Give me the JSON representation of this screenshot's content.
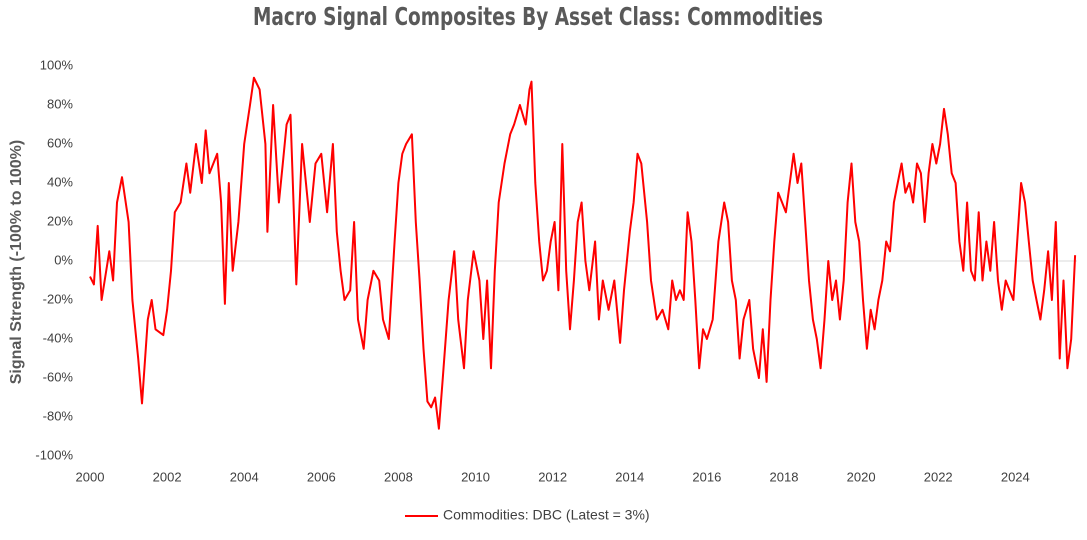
{
  "chart_data": {
    "type": "line",
    "title": "Macro Signal Composites By Asset Class: Commodities",
    "y_label": "Signal Strength (-100% to 100%)",
    "x": [
      2000.0,
      2000.1,
      2000.2,
      2000.3,
      2000.5,
      2000.6,
      2000.7,
      2000.83,
      2001.0,
      2001.1,
      2001.25,
      2001.35,
      2001.5,
      2001.6,
      2001.7,
      2001.9,
      2002.0,
      2002.1,
      2002.2,
      2002.35,
      2002.5,
      2002.6,
      2002.75,
      2002.9,
      2003.0,
      2003.1,
      2003.3,
      2003.4,
      2003.5,
      2003.6,
      2003.7,
      2003.85,
      2004.0,
      2004.15,
      2004.25,
      2004.4,
      2004.55,
      2004.6,
      2004.75,
      2004.9,
      2005.0,
      2005.1,
      2005.2,
      2005.35,
      2005.5,
      2005.7,
      2005.85,
      2006.0,
      2006.15,
      2006.3,
      2006.4,
      2006.5,
      2006.6,
      2006.75,
      2006.85,
      2006.95,
      2007.1,
      2007.2,
      2007.35,
      2007.5,
      2007.6,
      2007.75,
      2007.9,
      2008.0,
      2008.1,
      2008.2,
      2008.35,
      2008.45,
      2008.55,
      2008.65,
      2008.75,
      2008.85,
      2008.95,
      2009.05,
      2009.15,
      2009.3,
      2009.45,
      2009.55,
      2009.7,
      2009.8,
      2009.95,
      2010.1,
      2010.2,
      2010.3,
      2010.4,
      2010.5,
      2010.6,
      2010.75,
      2010.9,
      2011.0,
      2011.15,
      2011.3,
      2011.4,
      2011.45,
      2011.55,
      2011.65,
      2011.75,
      2011.85,
      2011.95,
      2012.05,
      2012.15,
      2012.25,
      2012.35,
      2012.45,
      2012.55,
      2012.65,
      2012.75,
      2012.85,
      2012.95,
      2013.1,
      2013.2,
      2013.3,
      2013.45,
      2013.6,
      2013.75,
      2013.85,
      2014.0,
      2014.1,
      2014.2,
      2014.3,
      2014.45,
      2014.55,
      2014.7,
      2014.85,
      2015.0,
      2015.1,
      2015.2,
      2015.3,
      2015.4,
      2015.5,
      2015.6,
      2015.7,
      2015.8,
      2015.9,
      2016.0,
      2016.15,
      2016.3,
      2016.45,
      2016.55,
      2016.65,
      2016.75,
      2016.85,
      2016.95,
      2017.1,
      2017.2,
      2017.35,
      2017.45,
      2017.55,
      2017.65,
      2017.75,
      2017.85,
      2017.95,
      2018.05,
      2018.15,
      2018.25,
      2018.35,
      2018.45,
      2018.55,
      2018.65,
      2018.75,
      2018.85,
      2018.95,
      2019.05,
      2019.15,
      2019.25,
      2019.35,
      2019.45,
      2019.55,
      2019.65,
      2019.75,
      2019.85,
      2019.95,
      2020.05,
      2020.15,
      2020.25,
      2020.35,
      2020.45,
      2020.55,
      2020.65,
      2020.75,
      2020.85,
      2020.95,
      2021.05,
      2021.15,
      2021.25,
      2021.35,
      2021.45,
      2021.55,
      2021.65,
      2021.75,
      2021.85,
      2021.95,
      2022.05,
      2022.15,
      2022.25,
      2022.35,
      2022.45,
      2022.55,
      2022.65,
      2022.75,
      2022.85,
      2022.95,
      2023.05,
      2023.15,
      2023.25,
      2023.35,
      2023.45,
      2023.55,
      2023.65,
      2023.75,
      2023.85,
      2023.95,
      2024.05,
      2024.15,
      2024.25,
      2024.35,
      2024.45,
      2024.55,
      2024.65,
      2024.75,
      2024.85,
      2024.95,
      2025.05,
      2025.15,
      2025.25,
      2025.35,
      2025.45,
      2025.55
    ],
    "series": [
      {
        "name": "Commodities: DBC (Latest = 3%)",
        "color": "#ff0000",
        "values": [
          -8,
          -12,
          18,
          -20,
          5,
          -10,
          30,
          43,
          20,
          -20,
          -50,
          -73,
          -30,
          -20,
          -35,
          -38,
          -25,
          -5,
          25,
          30,
          50,
          35,
          60,
          40,
          67,
          45,
          55,
          30,
          -22,
          40,
          -5,
          20,
          60,
          80,
          94,
          88,
          60,
          15,
          80,
          30,
          50,
          70,
          75,
          -12,
          60,
          20,
          50,
          55,
          25,
          60,
          15,
          -5,
          -20,
          -15,
          20,
          -30,
          -45,
          -20,
          -5,
          -10,
          -30,
          -40,
          10,
          40,
          55,
          60,
          65,
          20,
          -10,
          -45,
          -72,
          -75,
          -70,
          -86,
          -60,
          -20,
          5,
          -30,
          -55,
          -20,
          5,
          -10,
          -40,
          -10,
          -55,
          -5,
          30,
          50,
          65,
          70,
          80,
          70,
          88,
          92,
          40,
          10,
          -10,
          -5,
          10,
          20,
          -15,
          60,
          -5,
          -35,
          -10,
          20,
          30,
          0,
          -15,
          10,
          -30,
          -10,
          -25,
          -10,
          -42,
          -15,
          15,
          30,
          55,
          50,
          20,
          -10,
          -30,
          -25,
          -35,
          -10,
          -20,
          -15,
          -20,
          25,
          10,
          -20,
          -55,
          -35,
          -40,
          -30,
          10,
          30,
          20,
          -10,
          -20,
          -50,
          -30,
          -20,
          -45,
          -60,
          -35,
          -62,
          -20,
          10,
          35,
          30,
          25,
          40,
          55,
          40,
          50,
          20,
          -10,
          -30,
          -40,
          -55,
          -30,
          0,
          -20,
          -10,
          -30,
          -10,
          30,
          50,
          20,
          10,
          -20,
          -45,
          -25,
          -35,
          -20,
          -10,
          10,
          5,
          30,
          40,
          50,
          35,
          40,
          30,
          50,
          45,
          20,
          45,
          60,
          50,
          60,
          78,
          65,
          45,
          40,
          10,
          -5,
          30,
          -5,
          -10,
          25,
          -10,
          10,
          -5,
          20,
          -10,
          -25,
          -10,
          -15,
          -20,
          10,
          40,
          30,
          10,
          -10,
          -20,
          -30,
          -15,
          5,
          -20,
          20,
          -50,
          -10,
          -55,
          -40,
          3
        ]
      }
    ],
    "xlim": [
      2000,
      2025.6
    ],
    "xticks": [
      2000,
      2002,
      2004,
      2006,
      2008,
      2010,
      2012,
      2014,
      2016,
      2018,
      2020,
      2022,
      2024
    ],
    "ylim": [
      -100,
      100
    ],
    "yticks": [
      {
        "value": -100,
        "label": "-100%"
      },
      {
        "value": -80,
        "label": "-80%"
      },
      {
        "value": -60,
        "label": "-60%"
      },
      {
        "value": -40,
        "label": "-40%"
      },
      {
        "value": -20,
        "label": "-20%"
      },
      {
        "value": 0,
        "label": "0%"
      },
      {
        "value": 20,
        "label": "20%"
      },
      {
        "value": 40,
        "label": "40%"
      },
      {
        "value": 60,
        "label": "60%"
      },
      {
        "value": 80,
        "label": "80%"
      },
      {
        "value": 100,
        "label": "100%"
      }
    ],
    "legend": "bottom"
  }
}
